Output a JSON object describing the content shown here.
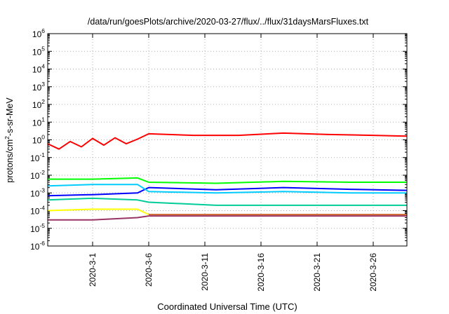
{
  "chart_data": {
    "type": "line",
    "title": "/data/run/goesPlots/archive/2020-03-27/flux/../flux/31daysMarsFluxes.txt",
    "xlabel": "Coordinated Universal Time (UTC)",
    "ylabel": {
      "base": "protons/cm",
      "sup": "2",
      "rest": "-s-sr-MeV"
    },
    "y_scale": "log",
    "ylim": [
      1e-06,
      1000000.0
    ],
    "y_ticks": [
      {
        "base": "10",
        "exp": "-6",
        "value": 1e-06
      },
      {
        "base": "10",
        "exp": "-5",
        "value": 1e-05
      },
      {
        "base": "10",
        "exp": "-4",
        "value": 0.0001
      },
      {
        "base": "10",
        "exp": "-3",
        "value": 0.001
      },
      {
        "base": "10",
        "exp": "-2",
        "value": 0.01
      },
      {
        "base": "10",
        "exp": "-1",
        "value": 0.1
      },
      {
        "base": "10",
        "exp": "0",
        "value": 1
      },
      {
        "base": "10",
        "exp": "1",
        "value": 10
      },
      {
        "base": "10",
        "exp": "2",
        "value": 100
      },
      {
        "base": "10",
        "exp": "3",
        "value": 1000
      },
      {
        "base": "10",
        "exp": "4",
        "value": 10000
      },
      {
        "base": "10",
        "exp": "5",
        "value": 100000
      },
      {
        "base": "10",
        "exp": "6",
        "value": 1000000
      }
    ],
    "xlim": [
      "2020-02-26",
      "2020-03-29"
    ],
    "x_ticks": [
      "2020-3-1",
      "2020-3-6",
      "2020-3-11",
      "2020-3-16",
      "2020-3-21",
      "2020-3-26"
    ],
    "grid": true,
    "series": [
      {
        "color": "#ff0000",
        "x": [
          "2020-02-26",
          "2020-02-27",
          "2020-02-28",
          "2020-02-29",
          "2020-03-01",
          "2020-03-02",
          "2020-03-03",
          "2020-03-04",
          "2020-03-05",
          "2020-03-06",
          "2020-03-10",
          "2020-03-14",
          "2020-03-18",
          "2020-03-22",
          "2020-03-26",
          "2020-03-29"
        ],
        "y": [
          0.6,
          0.3,
          0.8,
          0.4,
          1.2,
          0.5,
          1.3,
          0.6,
          1.1,
          2.2,
          1.8,
          1.8,
          2.4,
          2.0,
          1.8,
          1.6
        ]
      },
      {
        "color": "#00ff00",
        "x": [
          "2020-02-26",
          "2020-03-01",
          "2020-03-05",
          "2020-03-06",
          "2020-03-12",
          "2020-03-18",
          "2020-03-24",
          "2020-03-29"
        ],
        "y": [
          0.006,
          0.006,
          0.007,
          0.004,
          0.0035,
          0.0045,
          0.004,
          0.004
        ]
      },
      {
        "color": "#0000ff",
        "x": [
          "2020-02-26",
          "2020-03-01",
          "2020-03-05",
          "2020-03-06",
          "2020-03-12",
          "2020-03-18",
          "2020-03-24",
          "2020-03-29"
        ],
        "y": [
          0.0007,
          0.0008,
          0.001,
          0.002,
          0.0015,
          0.002,
          0.0016,
          0.0014
        ]
      },
      {
        "color": "#00ccff",
        "x": [
          "2020-02-26",
          "2020-03-01",
          "2020-03-05",
          "2020-03-06",
          "2020-03-12",
          "2020-03-18",
          "2020-03-24",
          "2020-03-29"
        ],
        "y": [
          0.0025,
          0.003,
          0.003,
          0.0012,
          0.001,
          0.0012,
          0.001,
          0.001
        ]
      },
      {
        "color": "#00cc99",
        "x": [
          "2020-02-26",
          "2020-03-01",
          "2020-03-05",
          "2020-03-06",
          "2020-03-12",
          "2020-03-18",
          "2020-03-24",
          "2020-03-29"
        ],
        "y": [
          0.0004,
          0.0005,
          0.0004,
          0.0003,
          0.0002,
          0.0002,
          0.0002,
          0.0002
        ]
      },
      {
        "color": "#ffff00",
        "x": [
          "2020-02-26",
          "2020-03-01",
          "2020-03-05",
          "2020-03-06"
        ],
        "y": [
          0.0001,
          0.00012,
          0.00012,
          6e-05
        ]
      },
      {
        "color": "#993366",
        "x": [
          "2020-02-26",
          "2020-03-01",
          "2020-03-05",
          "2020-03-06",
          "2020-03-12",
          "2020-03-18",
          "2020-03-24",
          "2020-03-29"
        ],
        "y": [
          3e-05,
          3e-05,
          4e-05,
          5e-05,
          5e-05,
          5e-05,
          5e-05,
          5e-05
        ]
      },
      {
        "color": "#cc6633",
        "x": [
          "2020-03-06",
          "2020-03-12",
          "2020-03-18",
          "2020-03-24",
          "2020-03-29"
        ],
        "y": [
          6e-05,
          6e-05,
          6e-05,
          6e-05,
          6e-05
        ]
      }
    ]
  }
}
